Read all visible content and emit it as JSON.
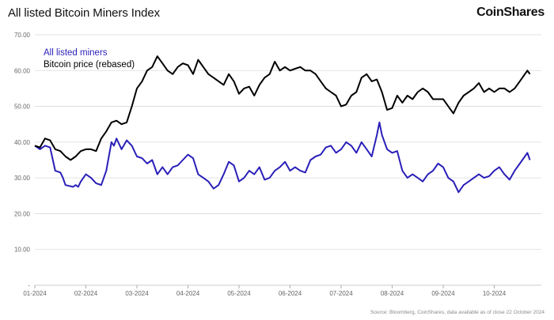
{
  "header": {
    "title": "All listed Bitcoin Miners Index",
    "brand": "CoinShares"
  },
  "footer": {
    "source": "Source: Bloomberg, CoinShares, data available as of close 22 October 2024"
  },
  "colors": {
    "miners": "#2a1fb8",
    "bitcoin": "#000000",
    "grid": "#d9d9d9"
  },
  "chart_data": {
    "type": "line",
    "title": "All listed Bitcoin Miners Index",
    "xlabel": "",
    "ylabel": "",
    "xlim": [
      0,
      9.7
    ],
    "ylim": [
      0,
      70
    ],
    "grid": true,
    "legend_position": "top-left",
    "x_ticks": [
      "01-2024",
      "02-2024",
      "03-2024",
      "04-2024",
      "05-2024",
      "06-2024",
      "07-2024",
      "08-2024",
      "09-2024",
      "10-2024"
    ],
    "y_ticks": [
      "-",
      "10.00",
      "20.00",
      "30.00",
      "40.00",
      "50.00",
      "60.00",
      "70.00"
    ],
    "series": [
      {
        "name": "All listed miners",
        "color": "#2a1fb8",
        "points": [
          [
            0,
            39
          ],
          [
            0.1,
            38
          ],
          [
            0.2,
            39
          ],
          [
            0.3,
            38.5
          ],
          [
            0.4,
            32
          ],
          [
            0.5,
            31.5
          ],
          [
            0.55,
            30
          ],
          [
            0.6,
            28
          ],
          [
            0.75,
            27.5
          ],
          [
            0.8,
            28
          ],
          [
            0.85,
            27.5
          ],
          [
            0.9,
            29
          ],
          [
            1.0,
            31
          ],
          [
            1.1,
            30
          ],
          [
            1.2,
            28.5
          ],
          [
            1.3,
            28
          ],
          [
            1.4,
            32
          ],
          [
            1.5,
            40
          ],
          [
            1.55,
            39
          ],
          [
            1.6,
            41
          ],
          [
            1.7,
            38
          ],
          [
            1.8,
            40.5
          ],
          [
            1.9,
            39
          ],
          [
            2.0,
            36
          ],
          [
            2.1,
            35.5
          ],
          [
            2.2,
            34
          ],
          [
            2.3,
            35
          ],
          [
            2.4,
            31
          ],
          [
            2.5,
            33
          ],
          [
            2.6,
            31
          ],
          [
            2.7,
            33
          ],
          [
            2.8,
            33.5
          ],
          [
            2.9,
            35
          ],
          [
            3.0,
            36.5
          ],
          [
            3.1,
            35.5
          ],
          [
            3.2,
            31
          ],
          [
            3.3,
            30
          ],
          [
            3.4,
            29
          ],
          [
            3.5,
            27
          ],
          [
            3.6,
            28
          ],
          [
            3.7,
            31
          ],
          [
            3.8,
            34.5
          ],
          [
            3.9,
            33.5
          ],
          [
            4.0,
            29
          ],
          [
            4.1,
            30
          ],
          [
            4.2,
            32
          ],
          [
            4.3,
            31
          ],
          [
            4.4,
            33
          ],
          [
            4.5,
            29.5
          ],
          [
            4.6,
            30
          ],
          [
            4.7,
            32
          ],
          [
            4.8,
            33
          ],
          [
            4.9,
            34.5
          ],
          [
            5.0,
            32
          ],
          [
            5.1,
            33
          ],
          [
            5.2,
            32
          ],
          [
            5.3,
            31.5
          ],
          [
            5.4,
            35
          ],
          [
            5.5,
            36
          ],
          [
            5.6,
            36.5
          ],
          [
            5.7,
            38.5
          ],
          [
            5.8,
            39
          ],
          [
            5.9,
            37
          ],
          [
            6.0,
            38
          ],
          [
            6.1,
            40
          ],
          [
            6.2,
            39
          ],
          [
            6.3,
            37
          ],
          [
            6.4,
            40
          ],
          [
            6.5,
            38
          ],
          [
            6.6,
            36
          ],
          [
            6.7,
            42
          ],
          [
            6.75,
            45.5
          ],
          [
            6.8,
            42
          ],
          [
            6.9,
            38
          ],
          [
            7.0,
            37
          ],
          [
            7.1,
            37.5
          ],
          [
            7.2,
            32
          ],
          [
            7.3,
            30
          ],
          [
            7.4,
            31
          ],
          [
            7.5,
            30
          ],
          [
            7.6,
            29
          ],
          [
            7.7,
            31
          ],
          [
            7.8,
            32
          ],
          [
            7.9,
            34
          ],
          [
            8.0,
            33
          ],
          [
            8.1,
            30
          ],
          [
            8.2,
            29
          ],
          [
            8.3,
            26
          ],
          [
            8.4,
            28
          ],
          [
            8.5,
            29
          ],
          [
            8.6,
            30
          ],
          [
            8.7,
            31
          ],
          [
            8.8,
            30
          ],
          [
            8.9,
            30.5
          ],
          [
            9.0,
            32
          ],
          [
            9.1,
            33
          ],
          [
            9.2,
            31
          ],
          [
            9.3,
            29.5
          ],
          [
            9.4,
            32
          ],
          [
            9.5,
            34
          ],
          [
            9.6,
            36
          ],
          [
            9.65,
            37
          ],
          [
            9.7,
            35
          ]
        ]
      },
      {
        "name": "Bitcoin price (rebased)",
        "color": "#000000",
        "points": [
          [
            0,
            39
          ],
          [
            0.1,
            38.5
          ],
          [
            0.2,
            41
          ],
          [
            0.3,
            40.5
          ],
          [
            0.4,
            38
          ],
          [
            0.5,
            37.5
          ],
          [
            0.6,
            36
          ],
          [
            0.7,
            35
          ],
          [
            0.8,
            36
          ],
          [
            0.9,
            37.5
          ],
          [
            1.0,
            38
          ],
          [
            1.1,
            38
          ],
          [
            1.2,
            37.5
          ],
          [
            1.3,
            41
          ],
          [
            1.4,
            43
          ],
          [
            1.5,
            45.5
          ],
          [
            1.6,
            46
          ],
          [
            1.7,
            45
          ],
          [
            1.8,
            45.5
          ],
          [
            1.9,
            50
          ],
          [
            2.0,
            55
          ],
          [
            2.1,
            57
          ],
          [
            2.2,
            60
          ],
          [
            2.3,
            61
          ],
          [
            2.4,
            64
          ],
          [
            2.5,
            62
          ],
          [
            2.6,
            60
          ],
          [
            2.7,
            59
          ],
          [
            2.8,
            61
          ],
          [
            2.9,
            62
          ],
          [
            3.0,
            61.5
          ],
          [
            3.1,
            59
          ],
          [
            3.2,
            63
          ],
          [
            3.3,
            61
          ],
          [
            3.4,
            59
          ],
          [
            3.5,
            58
          ],
          [
            3.6,
            57
          ],
          [
            3.7,
            56
          ],
          [
            3.8,
            59
          ],
          [
            3.9,
            57
          ],
          [
            4.0,
            53.5
          ],
          [
            4.1,
            55
          ],
          [
            4.2,
            55.5
          ],
          [
            4.3,
            53
          ],
          [
            4.4,
            56
          ],
          [
            4.5,
            58
          ],
          [
            4.6,
            59
          ],
          [
            4.7,
            62.5
          ],
          [
            4.8,
            60
          ],
          [
            4.9,
            61
          ],
          [
            5.0,
            60
          ],
          [
            5.1,
            60.5
          ],
          [
            5.2,
            61
          ],
          [
            5.3,
            60
          ],
          [
            5.4,
            60
          ],
          [
            5.5,
            59
          ],
          [
            5.6,
            57
          ],
          [
            5.7,
            55
          ],
          [
            5.8,
            54
          ],
          [
            5.9,
            53
          ],
          [
            6.0,
            50
          ],
          [
            6.1,
            50.5
          ],
          [
            6.2,
            53
          ],
          [
            6.3,
            54
          ],
          [
            6.4,
            58
          ],
          [
            6.5,
            59
          ],
          [
            6.6,
            57
          ],
          [
            6.7,
            57.5
          ],
          [
            6.8,
            54
          ],
          [
            6.9,
            49
          ],
          [
            7.0,
            49.5
          ],
          [
            7.1,
            53
          ],
          [
            7.2,
            51
          ],
          [
            7.3,
            53
          ],
          [
            7.4,
            52
          ],
          [
            7.5,
            54
          ],
          [
            7.6,
            55
          ],
          [
            7.7,
            54
          ],
          [
            7.8,
            52
          ],
          [
            7.9,
            52
          ],
          [
            8.0,
            52
          ],
          [
            8.1,
            50
          ],
          [
            8.2,
            48
          ],
          [
            8.3,
            51
          ],
          [
            8.4,
            53
          ],
          [
            8.5,
            54
          ],
          [
            8.6,
            55
          ],
          [
            8.7,
            56.5
          ],
          [
            8.8,
            54
          ],
          [
            8.9,
            55
          ],
          [
            9.0,
            54
          ],
          [
            9.1,
            55
          ],
          [
            9.2,
            55
          ],
          [
            9.3,
            54
          ],
          [
            9.4,
            55
          ],
          [
            9.5,
            57
          ],
          [
            9.6,
            59
          ],
          [
            9.65,
            60
          ],
          [
            9.7,
            59
          ]
        ]
      }
    ]
  }
}
